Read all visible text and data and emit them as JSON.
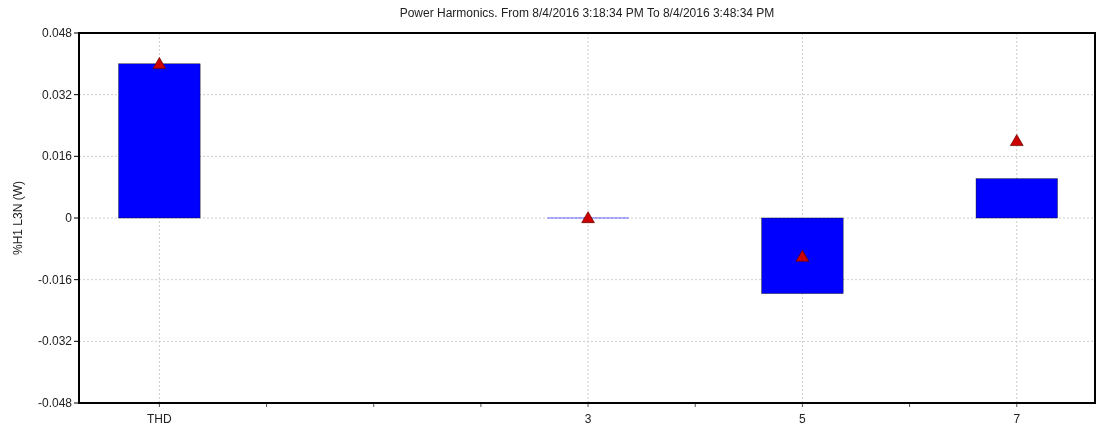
{
  "chart_data": {
    "type": "bar",
    "title": "Power Harmonics. From 8/4/2016 3:18:34 PM To 8/4/2016 3:48:34 PM",
    "ylabel": "%H1 L3N (W)",
    "categories": [
      "THD",
      null,
      null,
      null,
      "3",
      null,
      "5",
      null,
      "7"
    ],
    "series": [
      {
        "color": "#0000ff",
        "values": [
          0.04,
          null,
          null,
          null,
          0,
          null,
          -0.0196,
          null,
          0.0102
        ]
      },
      {
        "type": "scatter",
        "color": "#cc0000",
        "x": [
          "THD",
          "3",
          "5",
          "7"
        ],
        "values": [
          0.04,
          0,
          -0.01,
          0.02
        ]
      }
    ],
    "marker": "triangle",
    "ylim": [
      -0.048,
      0.048
    ],
    "yticks": [
      -0.048,
      -0.032,
      -0.016,
      0,
      0.016,
      0.032,
      0.048
    ],
    "grid": true
  }
}
